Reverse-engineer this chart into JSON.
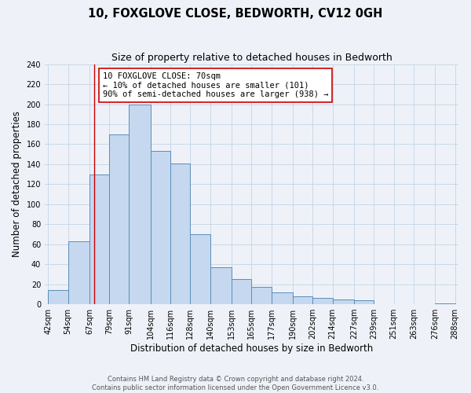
{
  "title": "10, FOXGLOVE CLOSE, BEDWORTH, CV12 0GH",
  "subtitle": "Size of property relative to detached houses in Bedworth",
  "xlabel": "Distribution of detached houses by size in Bedworth",
  "ylabel": "Number of detached properties",
  "bin_edges": [
    42,
    54,
    67,
    79,
    91,
    104,
    116,
    128,
    140,
    153,
    165,
    177,
    190,
    202,
    214,
    227,
    239,
    251,
    263,
    276,
    288
  ],
  "counts": [
    14,
    63,
    130,
    170,
    200,
    153,
    141,
    70,
    37,
    25,
    17,
    12,
    8,
    6,
    5,
    4,
    0,
    0,
    0,
    1
  ],
  "bar_facecolor": "#c5d8f0",
  "bar_edgecolor": "#5b8db8",
  "grid_color": "#c8d8e8",
  "vline_x": 70,
  "vline_color": "#cc0000",
  "annotation_text": "10 FOXGLOVE CLOSE: 70sqm\n← 10% of detached houses are smaller (101)\n90% of semi-detached houses are larger (938) →",
  "annotation_box_edgecolor": "#cc0000",
  "annotation_box_facecolor": "#ffffff",
  "ylim": [
    0,
    240
  ],
  "yticks": [
    0,
    20,
    40,
    60,
    80,
    100,
    120,
    140,
    160,
    180,
    200,
    220,
    240
  ],
  "footnote": "Contains HM Land Registry data © Crown copyright and database right 2024.\nContains public sector information licensed under the Open Government Licence v3.0.",
  "title_fontsize": 10.5,
  "subtitle_fontsize": 9,
  "axis_label_fontsize": 8.5,
  "tick_fontsize": 7,
  "annotation_fontsize": 7.5,
  "footnote_fontsize": 6,
  "background_color": "#eef2f8"
}
